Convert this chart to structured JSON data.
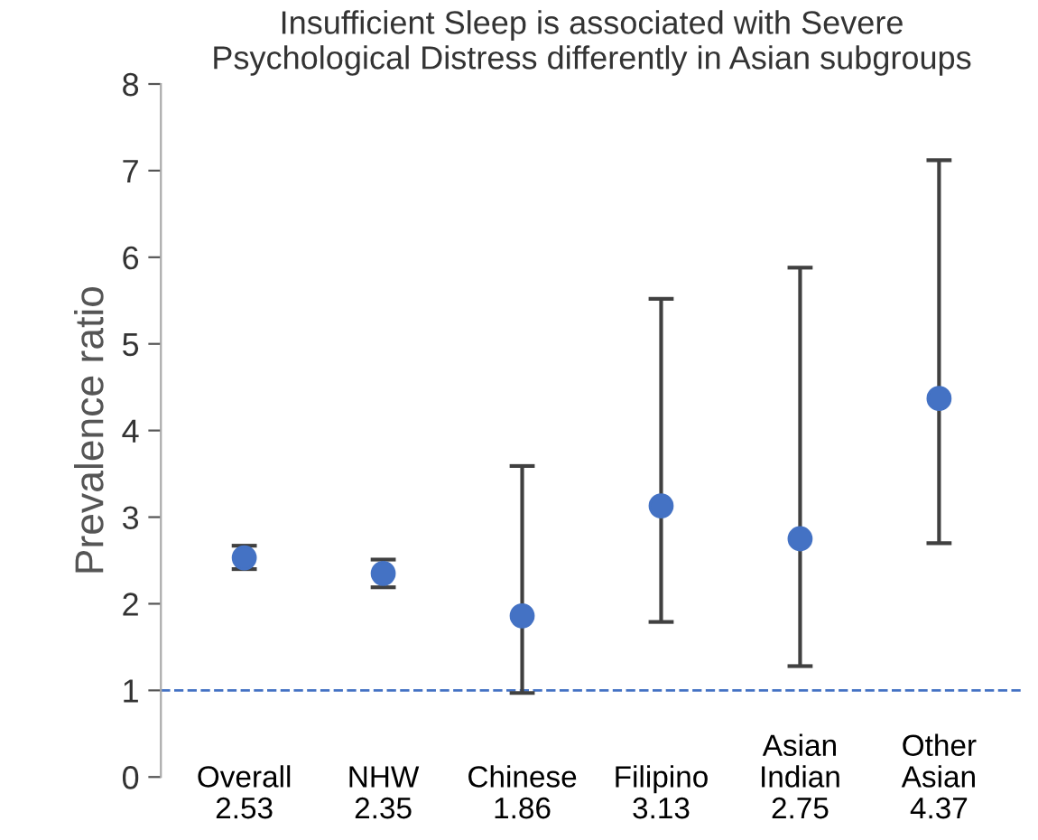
{
  "chart_data": {
    "type": "scatter",
    "title": "Insufficient Sleep is associated with Severe\nPsychological Distress differently in Asian subgroups",
    "ylabel": "Prevalence ratio",
    "categories": [
      "Overall\n2.53",
      "NHW\n2.35",
      "Chinese\n1.86",
      "Filipino\n3.13",
      "Asian\nIndian\n2.75",
      "Other\nAsian\n4.37"
    ],
    "series": [
      {
        "color": "#4472c4",
        "values": [
          2.53,
          2.35,
          1.86,
          3.13,
          2.75,
          4.37
        ],
        "errors": [
          [
            2.4,
            2.67
          ],
          [
            2.19,
            2.51
          ],
          [
            0.97,
            3.59
          ],
          [
            1.79,
            5.52
          ],
          [
            1.28,
            5.88
          ],
          [
            2.7,
            7.12
          ]
        ]
      }
    ],
    "marker": "circle",
    "ylim": [
      0,
      8
    ],
    "yticks": [
      0,
      1,
      2,
      3,
      4,
      5,
      6,
      7,
      8
    ],
    "ref_lines": [
      {
        "axis": "y",
        "value": 1,
        "color": "#4472c4",
        "line_style": "dashed"
      }
    ],
    "grid": false,
    "legend": false
  }
}
